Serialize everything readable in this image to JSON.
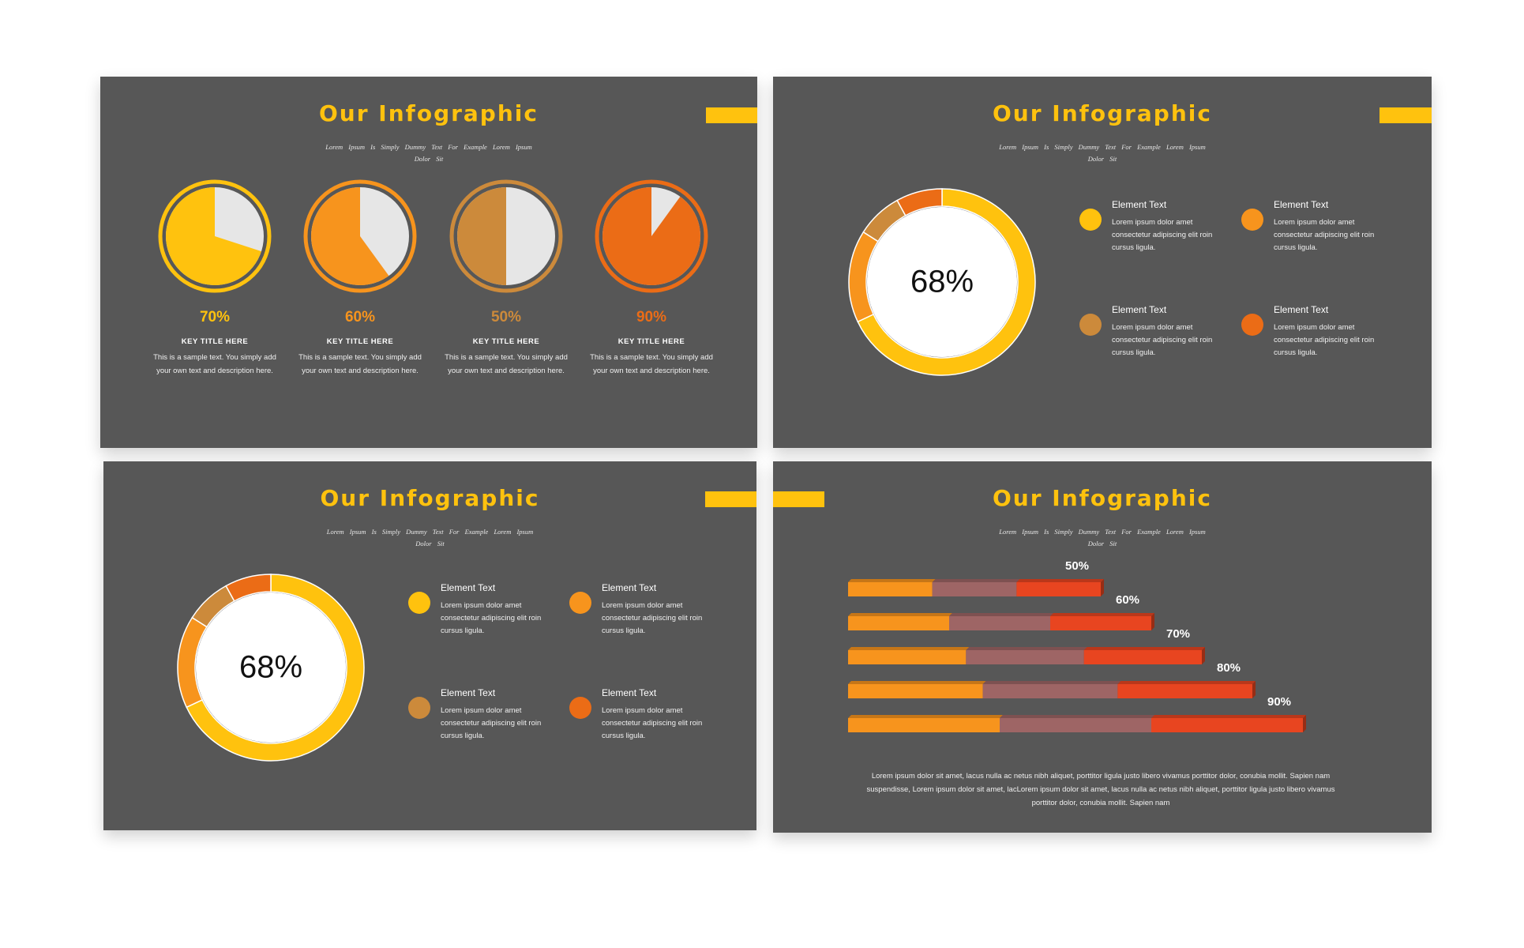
{
  "colors": {
    "background": "#ffffff",
    "slide_bg": "#575757",
    "yellow": "#ffc20e",
    "orange": "#f7941d",
    "tan": "#cc8a3b",
    "dark_orange": "#eb6c16",
    "pie_remainder": "#e6e6e6",
    "bar_mauve": "#9e6565",
    "bar_red": "#e84520"
  },
  "slides": [
    {
      "title": "Our Infographic",
      "subtitle": "Lorem Ipsum Is Simply Dummy Text For Example Lorem Ipsum Dolor Sit",
      "pies": [
        {
          "value": 70,
          "percent_label": "70%",
          "color": "#ffc20e",
          "key_title": "KEY TITLE HERE",
          "description": "This is a sample text. You simply add your own text and description here."
        },
        {
          "value": 60,
          "percent_label": "60%",
          "color": "#f7941d",
          "key_title": "KEY TITLE HERE",
          "description": "This is a sample text. You simply add your own text and description here."
        },
        {
          "value": 50,
          "percent_label": "50%",
          "color": "#cc8a3b",
          "key_title": "KEY TITLE HERE",
          "description": "This is a sample text. You simply add your own text and description here."
        },
        {
          "value": 90,
          "percent_label": "90%",
          "color": "#eb6c16",
          "key_title": "KEY TITLE HERE",
          "description": "This is a sample text. You simply add your own text and description here."
        }
      ]
    },
    {
      "title": "Our Infographic",
      "subtitle": "Lorem Ipsum Is Simply Dummy Text For Example Lorem Ipsum Dolor Sit",
      "center_label": "68%",
      "donut_segments": [
        {
          "value": 68,
          "color": "#ffc20e"
        },
        {
          "value": 16,
          "color": "#f7941d"
        },
        {
          "value": 8,
          "color": "#cc8a3b"
        },
        {
          "value": 8,
          "color": "#eb6c16"
        }
      ],
      "legend": [
        {
          "title": "Element Text",
          "description": "Lorem ipsum dolor amet consectetur adipiscing elit roin cursus ligula.",
          "color": "#ffc20e"
        },
        {
          "title": "Element Text",
          "description": "Lorem ipsum dolor amet consectetur adipiscing elit roin cursus ligula.",
          "color": "#f7941d"
        },
        {
          "title": "Element Text",
          "description": "Lorem ipsum dolor amet consectetur adipiscing elit roin cursus ligula.",
          "color": "#cc8a3b"
        },
        {
          "title": "Element Text",
          "description": "Lorem ipsum dolor amet consectetur adipiscing elit roin cursus ligula.",
          "color": "#eb6c16"
        }
      ]
    },
    {
      "title": "Our Infographic",
      "subtitle": "Lorem Ipsum Is Simply Dummy Text For Example Lorem Ipsum Dolor Sit",
      "center_label": "68%",
      "donut_segments": [
        {
          "value": 68,
          "color": "#ffc20e"
        },
        {
          "value": 16,
          "color": "#f7941d"
        },
        {
          "value": 8,
          "color": "#cc8a3b"
        },
        {
          "value": 8,
          "color": "#eb6c16"
        }
      ],
      "legend": [
        {
          "title": "Element Text",
          "description": "Lorem ipsum dolor amet consectetur adipiscing elit roin cursus ligula.",
          "color": "#ffc20e"
        },
        {
          "title": "Element Text",
          "description": "Lorem ipsum dolor amet consectetur adipiscing elit roin cursus ligula.",
          "color": "#f7941d"
        },
        {
          "title": "Element Text",
          "description": "Lorem ipsum dolor amet consectetur adipiscing elit roin cursus ligula.",
          "color": "#cc8a3b"
        },
        {
          "title": "Element Text",
          "description": "Lorem ipsum dolor amet consectetur adipiscing elit roin cursus ligula.",
          "color": "#eb6c16"
        }
      ]
    },
    {
      "title": "Our Infographic",
      "subtitle": "Lorem Ipsum Is Simply Dummy Text For Example Lorem Ipsum Dolor Sit",
      "footer_text": "Lorem ipsum dolor sit amet, lacus nulla ac netus nibh aliquet, porttitor ligula justo libero vivamus porttitor dolor, conubia mollit. Sapien nam suspendisse, Lorem ipsum dolor sit amet, lacLorem ipsum dolor sit amet, lacus nulla ac netus nibh aliquet, porttitor ligula justo libero vivamus porttitor dolor, conubia mollit. Sapien nam"
    }
  ],
  "chart_data": {
    "type": "bar",
    "orientation": "horizontal",
    "stacked": true,
    "categories": [
      "50%",
      "60%",
      "70%",
      "80%",
      "90%"
    ],
    "values": [
      50,
      60,
      70,
      80,
      90
    ],
    "segment_colors": [
      "#f7941d",
      "#9e6565",
      "#e84520"
    ]
  }
}
